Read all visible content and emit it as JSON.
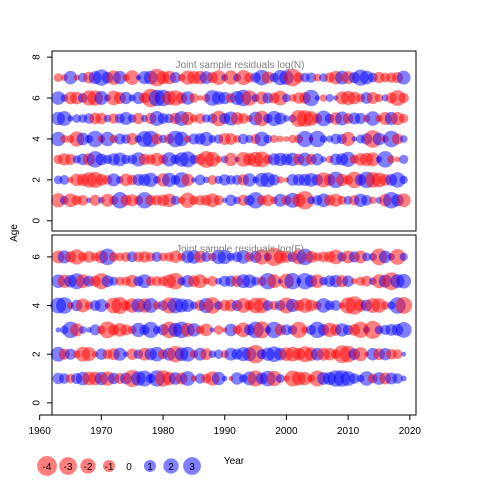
{
  "chart_data": [
    {
      "type": "scatter",
      "title": "Joint sample residuals log(N)",
      "xlabel": "",
      "ylabel": "Age",
      "xlim": [
        1962,
        2021
      ],
      "ylim": [
        -0.5,
        8.3
      ],
      "x_ticks": [
        "1960",
        "1970",
        "1980",
        "1990",
        "2000",
        "2010",
        "2020"
      ],
      "y_ticks": [
        "0",
        "2",
        "4",
        "6",
        "8"
      ],
      "years": [
        1963,
        2019
      ],
      "ages": [
        1,
        2,
        3,
        4,
        5,
        6,
        7
      ],
      "seed": 11
    },
    {
      "type": "scatter",
      "title": "Joint sample residuals log(F)",
      "xlabel": "Year",
      "ylabel": "",
      "xlim": [
        1962,
        2021
      ],
      "ylim": [
        -0.5,
        6.9
      ],
      "x_ticks": [
        "1960",
        "1970",
        "1980",
        "1990",
        "2000",
        "2010",
        "2020"
      ],
      "y_ticks": [
        "0",
        "2",
        "4",
        "6"
      ],
      "years": [
        1963,
        2019
      ],
      "ages": [
        1,
        2,
        3,
        4,
        5,
        6
      ],
      "seed": 29
    }
  ],
  "shared_ylabel": "Age",
  "shared_xlabel": "Year",
  "legend": {
    "labels": [
      "-4",
      "-3",
      "-2",
      "-1",
      "0",
      "1",
      "2",
      "3"
    ],
    "values": [
      -4,
      -3,
      -2,
      -1,
      0,
      1,
      2,
      3
    ]
  },
  "colors": {
    "negative": "#ff0000",
    "positive": "#0000ff",
    "bubble_alpha": 0.5,
    "title": "#808080",
    "axis": "#000000"
  }
}
